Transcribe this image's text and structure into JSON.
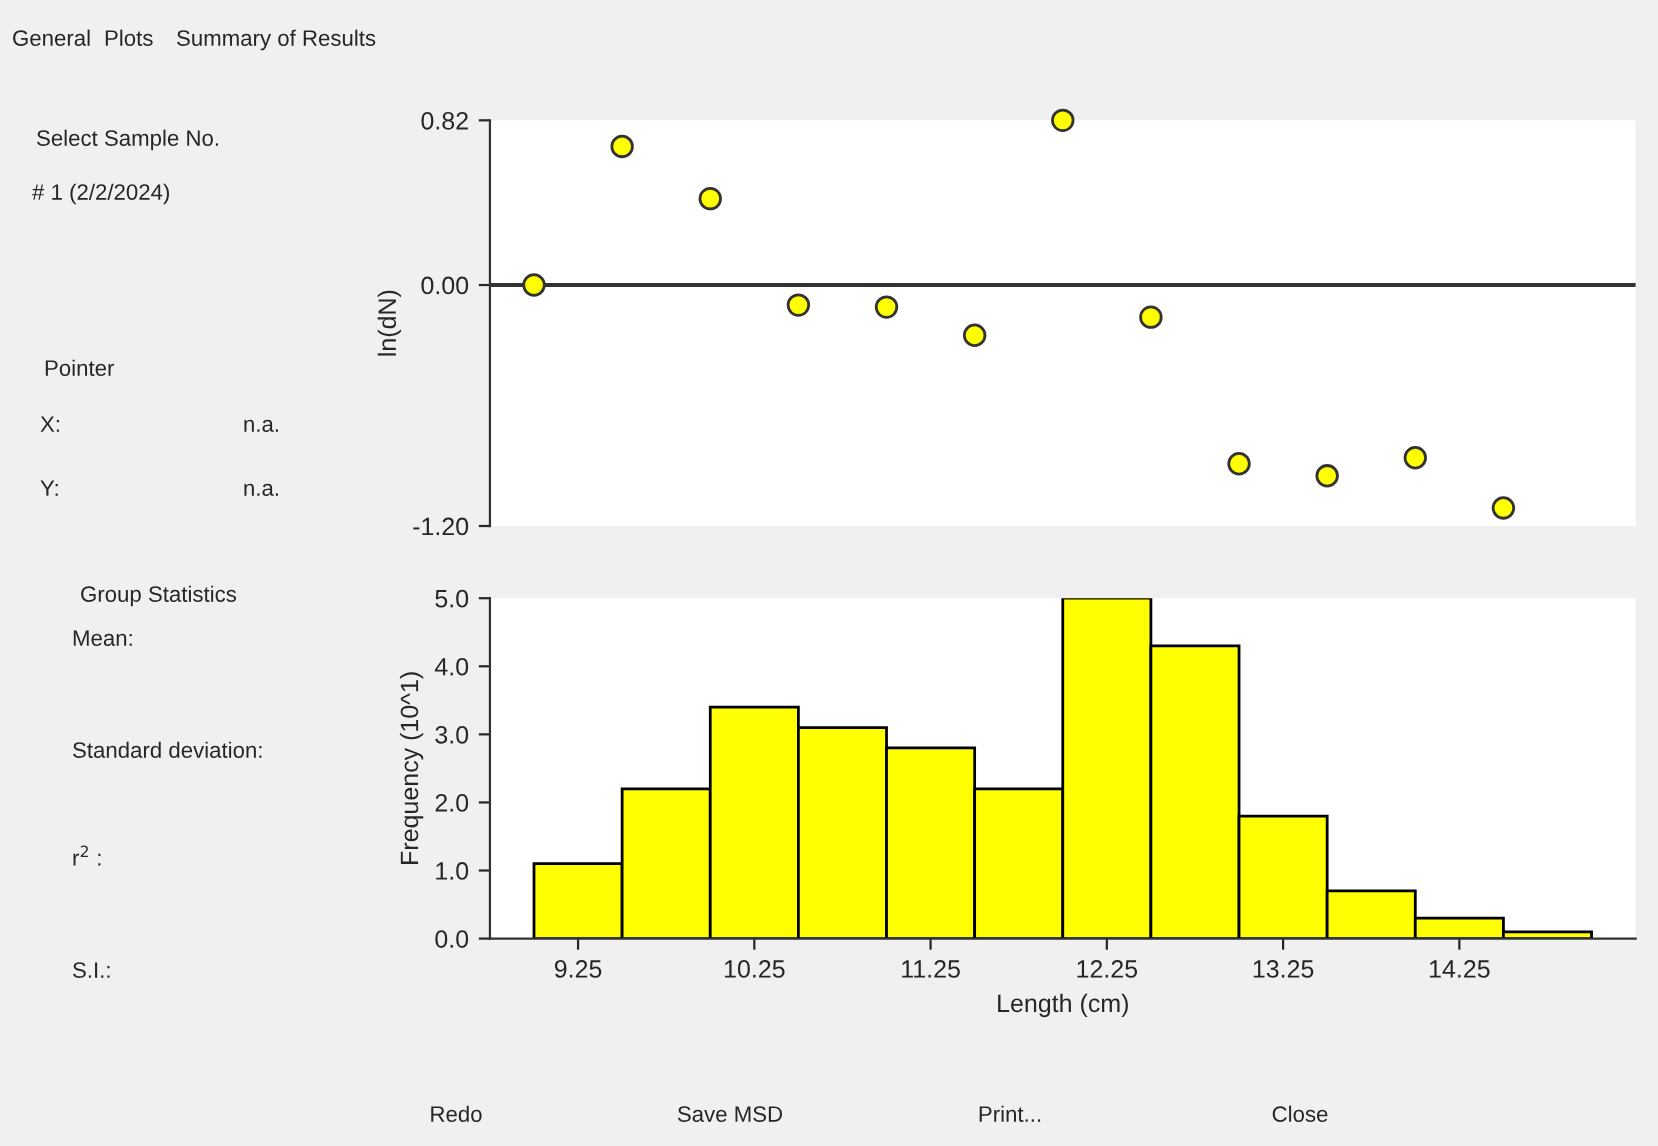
{
  "chart_data": [
    {
      "type": "other",
      "annotations": [
        "General",
        "Plots",
        "Summary of Results",
        "Select Sample No.",
        "# 1 (2/2/2024)",
        "Pointer",
        "X:",
        "n.a.",
        "Y:",
        "n.a.",
        "Group Statistics",
        "Mean:",
        "Standard deviation:",
        "r$^{2}$ :",
        "S.I.:",
        "Redo",
        "Save MSD",
        "Print...",
        "Close"
      ]
    },
    {
      "type": "scatter",
      "ylabel": "ln(dN)",
      "x": [
        9.0,
        9.5,
        10.0,
        10.5,
        11.0,
        11.5,
        12.0,
        12.5,
        13.0,
        13.5,
        14.0,
        14.5
      ],
      "series": [
        {
          "color": "#ffff00",
          "values": [
            0.0,
            0.69,
            0.43,
            -0.1,
            -0.11,
            -0.25,
            0.82,
            -0.16,
            -0.89,
            -0.95,
            -0.86,
            -1.11
          ]
        }
      ],
      "xlim": [
        8.75,
        15.25
      ],
      "ylim": [
        -1.2,
        0.82
      ],
      "yticks": [
        {
          "value": 0.82,
          "label": "0.82"
        },
        {
          "value": 0,
          "label": "0.00"
        },
        {
          "value": -1.2,
          "label": "-1.20"
        }
      ],
      "ref_lines": [
        {
          "axis": "y",
          "value": 0,
          "color": "#333333"
        }
      ],
      "tick_labels": "y",
      "marker": "circle",
      "grid": false,
      "legend": false
    },
    {
      "type": "histogram",
      "xlabel": "Length (cm)",
      "ylabel": "Frequency (10^1)",
      "bins": [
        9.0,
        9.5,
        10.0,
        10.5,
        11.0,
        11.5,
        12.0,
        12.5,
        13.0,
        13.5,
        14.0,
        14.5,
        15.0
      ],
      "values": [
        1.1,
        2.2,
        3.4,
        3.1,
        2.8,
        2.2,
        5.0,
        4.3,
        1.8,
        0.7,
        0.3,
        0.1
      ],
      "color": "#ffff00",
      "xlim": [
        8.75,
        15.25
      ],
      "ylim": [
        0,
        5.0
      ],
      "xticks": [
        9.25,
        10.25,
        11.25,
        12.25,
        13.25,
        14.25
      ],
      "yticks": [
        {
          "value": 0,
          "label": "0.0"
        },
        {
          "value": 1,
          "label": "1.0"
        },
        {
          "value": 2,
          "label": "2.0"
        },
        {
          "value": 3,
          "label": "3.0"
        },
        {
          "value": 4,
          "label": "4.0"
        },
        {
          "value": 5,
          "label": "5.0"
        }
      ],
      "grid": false,
      "legend": false
    }
  ]
}
